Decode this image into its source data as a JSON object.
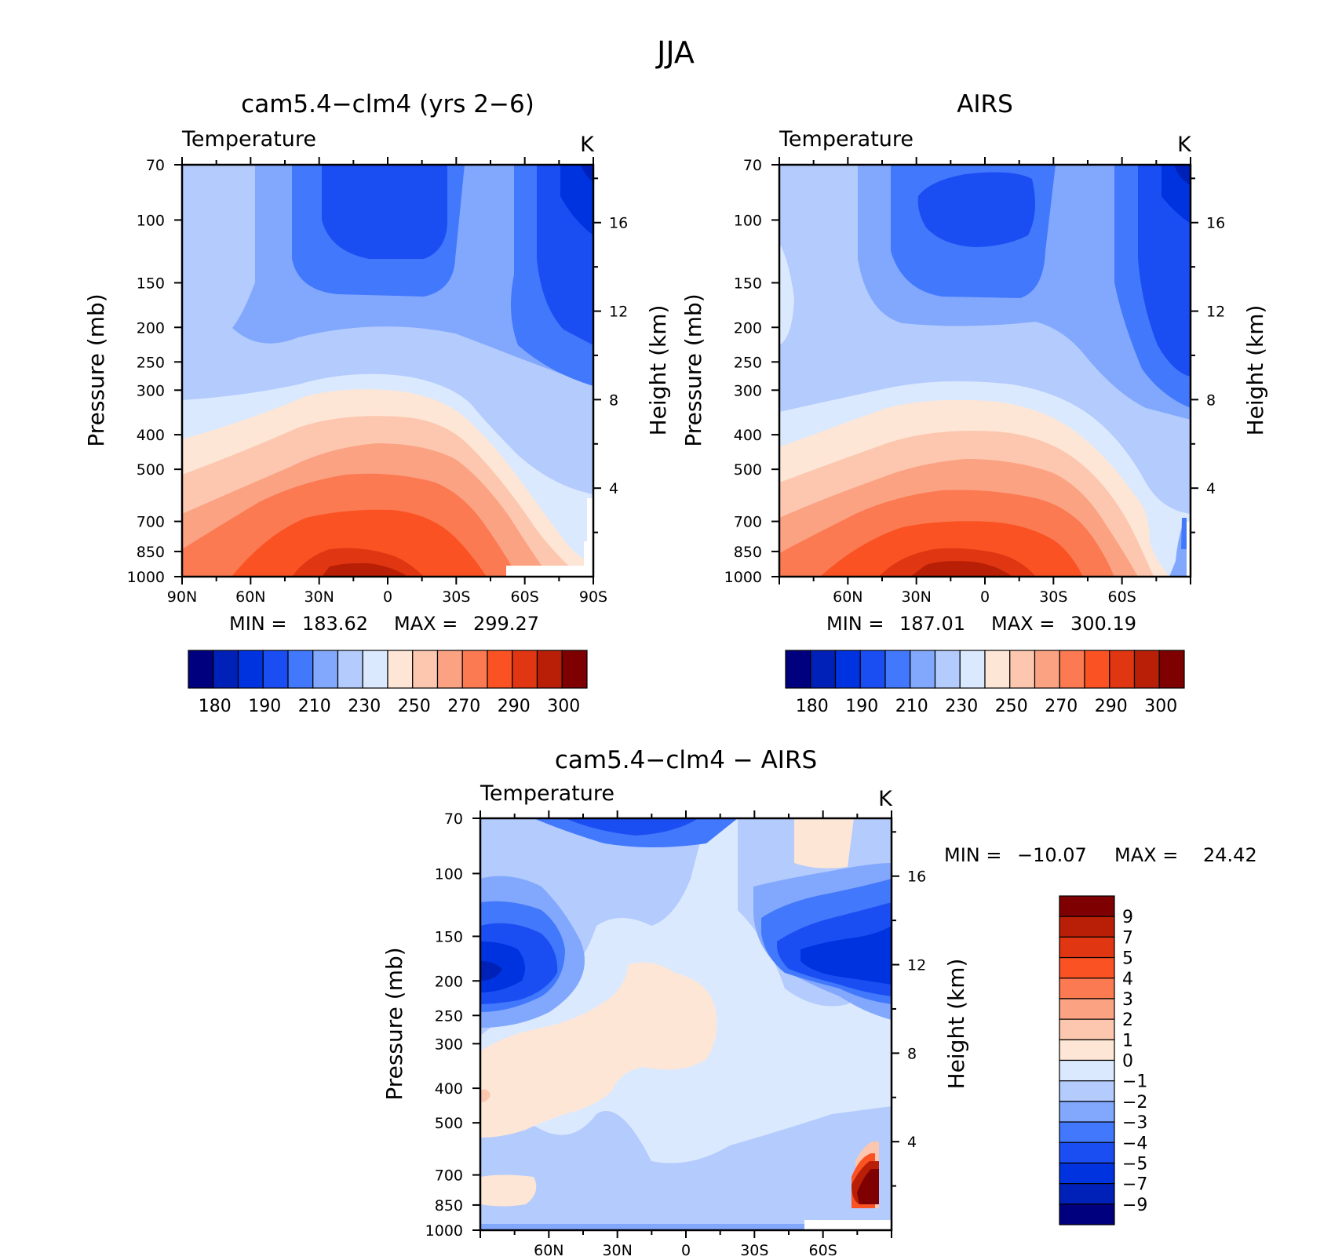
{
  "figure": {
    "title": "JJA"
  },
  "palette": {
    "cool": [
      "#00007f",
      "#0021b8",
      "#0033e0",
      "#1b4ef2",
      "#4278fc",
      "#82a8fd",
      "#b3cbfd",
      "#dbe9fe"
    ],
    "warm": [
      "#fde6d6",
      "#fcc7ae",
      "#fba283",
      "#fb7a52",
      "#fa5223",
      "#e03612",
      "#b91f06",
      "#7f0000"
    ]
  },
  "chart_data": [
    {
      "type": "heatmap",
      "panel": "model",
      "title": "cam5.4-clm4 (yrs 2-6)",
      "subtitle": "Temperature",
      "units": "K",
      "ylabel": "Pressure (mb)",
      "y2label": "Height (km)",
      "x_ticks": [
        "90N",
        "60N",
        "30N",
        "0",
        "30S",
        "60S",
        "90S"
      ],
      "y_ticks": [
        "70",
        "100",
        "150",
        "200",
        "250",
        "300",
        "400",
        "500",
        "700",
        "850",
        "1000"
      ],
      "y2_ticks": [
        "16",
        "12",
        "8",
        "4"
      ],
      "min_label": "MIN =",
      "min_value": "183.62",
      "max_label": "MAX =",
      "max_value": "299.27",
      "colorbar_labels": [
        "180",
        "190",
        "210",
        "230",
        "250",
        "270",
        "290",
        "300"
      ]
    },
    {
      "type": "heatmap",
      "panel": "obs",
      "title": "AIRS",
      "subtitle": "Temperature",
      "units": "K",
      "ylabel": "Pressure (mb)",
      "y2label": "Height (km)",
      "x_ticks": [
        "60N",
        "30N",
        "0",
        "30S",
        "60S"
      ],
      "y_ticks": [
        "70",
        "100",
        "150",
        "200",
        "250",
        "300",
        "400",
        "500",
        "700",
        "850",
        "1000"
      ],
      "y2_ticks": [
        "16",
        "12",
        "8",
        "4"
      ],
      "min_label": "MIN =",
      "min_value": "187.01",
      "max_label": "MAX =",
      "max_value": "300.19",
      "colorbar_labels": [
        "180",
        "190",
        "210",
        "230",
        "250",
        "270",
        "290",
        "300"
      ]
    },
    {
      "type": "heatmap",
      "panel": "diff",
      "title": "cam5.4-clm4 - AIRS",
      "subtitle": "Temperature",
      "units": "K",
      "ylabel": "Pressure (mb)",
      "y2label": "Height (km)",
      "x_ticks": [
        "60N",
        "30N",
        "0",
        "30S",
        "60S"
      ],
      "y_ticks": [
        "70",
        "100",
        "150",
        "200",
        "250",
        "300",
        "400",
        "500",
        "700",
        "850",
        "1000"
      ],
      "y2_ticks": [
        "16",
        "12",
        "8",
        "4"
      ],
      "min_label": "MIN =",
      "min_value": "-10.07",
      "max_label": "MAX =",
      "max_value": "24.42",
      "colorbar_labels": [
        "9",
        "7",
        "5",
        "4",
        "3",
        "2",
        "1",
        "0",
        "-1",
        "-2",
        "-3",
        "-4",
        "-5",
        "-7",
        "-9"
      ]
    }
  ]
}
